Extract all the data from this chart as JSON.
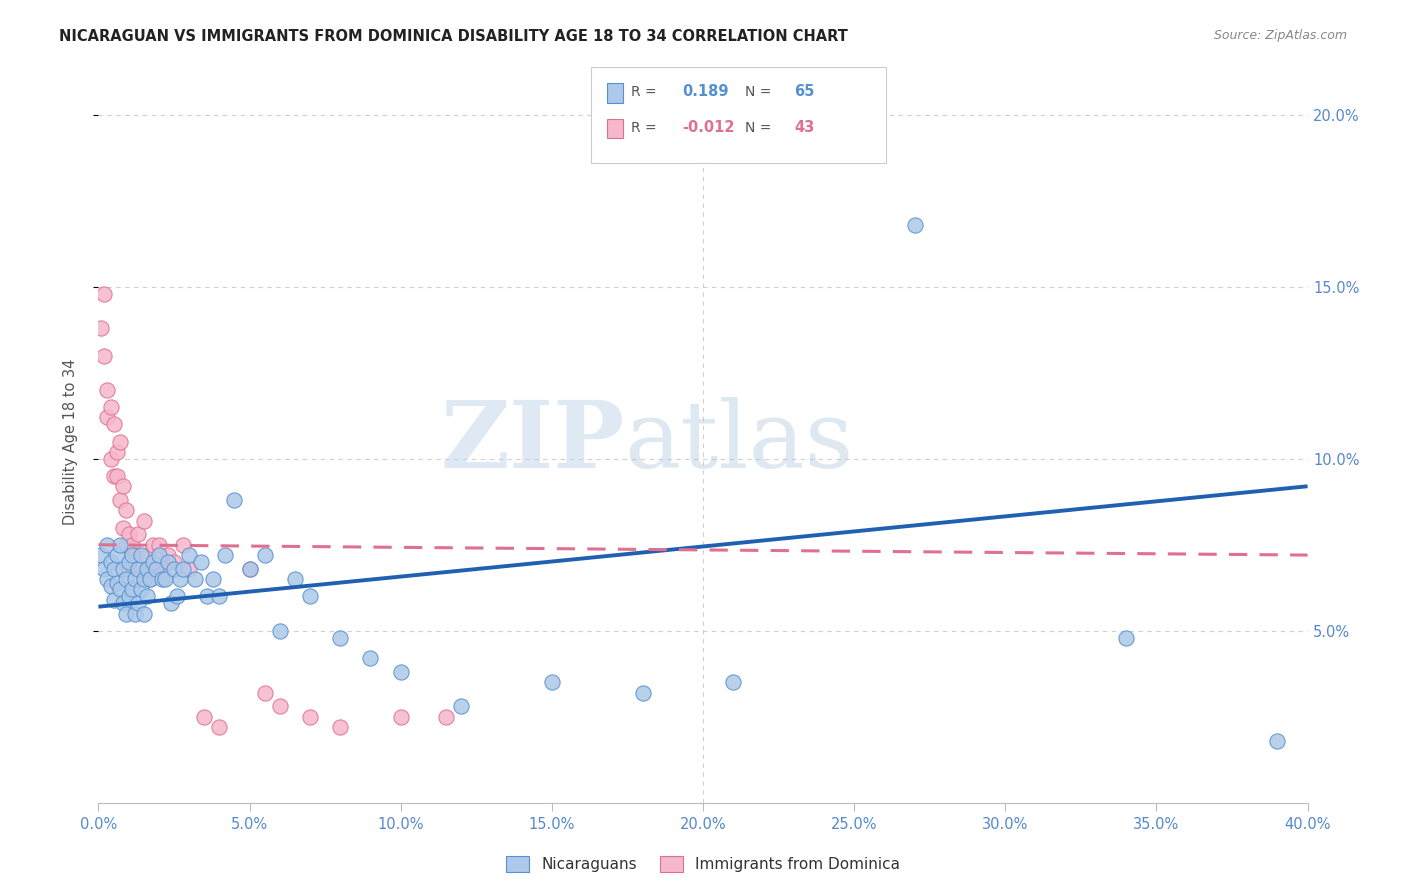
{
  "title": "NICARAGUAN VS IMMIGRANTS FROM DOMINICA DISABILITY AGE 18 TO 34 CORRELATION CHART",
  "source": "Source: ZipAtlas.com",
  "ylabel": "Disability Age 18 to 34",
  "legend_blue_r": "0.189",
  "legend_blue_n": "65",
  "legend_pink_r": "-0.012",
  "legend_pink_n": "43",
  "watermark_zip": "ZIP",
  "watermark_atlas": "atlas",
  "blue_dot_fill": "#adc8e8",
  "blue_dot_edge": "#5590d0",
  "pink_dot_fill": "#f5b8cc",
  "pink_dot_edge": "#e07090",
  "blue_line_color": "#2060b0",
  "pink_line_color": "#e07090",
  "grid_color": "#d0d0d0",
  "axis_label_color": "#5588cc",
  "title_color": "#222222",
  "source_color": "#888888",
  "xlim": [
    0.0,
    0.4
  ],
  "ylim": [
    0.0,
    0.21
  ],
  "x_ticks": [
    0.0,
    0.05,
    0.1,
    0.15,
    0.2,
    0.25,
    0.3,
    0.35,
    0.4
  ],
  "y_ticks": [
    0.05,
    0.1,
    0.15,
    0.2
  ],
  "blue_line_x0": 0.0,
  "blue_line_y0": 0.057,
  "blue_line_x1": 0.4,
  "blue_line_y1": 0.092,
  "pink_line_x0": 0.0,
  "pink_line_y0": 0.075,
  "pink_line_x1": 0.4,
  "pink_line_y1": 0.072,
  "blue_x": [
    0.001,
    0.002,
    0.003,
    0.003,
    0.004,
    0.004,
    0.005,
    0.005,
    0.006,
    0.006,
    0.007,
    0.007,
    0.008,
    0.008,
    0.009,
    0.009,
    0.01,
    0.01,
    0.011,
    0.011,
    0.012,
    0.012,
    0.013,
    0.013,
    0.014,
    0.014,
    0.015,
    0.015,
    0.016,
    0.016,
    0.017,
    0.018,
    0.019,
    0.02,
    0.021,
    0.022,
    0.023,
    0.024,
    0.025,
    0.026,
    0.027,
    0.028,
    0.03,
    0.032,
    0.034,
    0.036,
    0.038,
    0.04,
    0.042,
    0.045,
    0.05,
    0.055,
    0.06,
    0.065,
    0.07,
    0.08,
    0.09,
    0.1,
    0.12,
    0.15,
    0.18,
    0.21,
    0.27,
    0.34,
    0.39
  ],
  "blue_y": [
    0.072,
    0.068,
    0.075,
    0.065,
    0.07,
    0.063,
    0.068,
    0.059,
    0.072,
    0.064,
    0.075,
    0.062,
    0.068,
    0.058,
    0.065,
    0.055,
    0.07,
    0.06,
    0.072,
    0.062,
    0.065,
    0.055,
    0.068,
    0.058,
    0.072,
    0.062,
    0.065,
    0.055,
    0.068,
    0.06,
    0.065,
    0.07,
    0.068,
    0.072,
    0.065,
    0.065,
    0.07,
    0.058,
    0.068,
    0.06,
    0.065,
    0.068,
    0.072,
    0.065,
    0.07,
    0.06,
    0.065,
    0.06,
    0.072,
    0.088,
    0.068,
    0.072,
    0.05,
    0.065,
    0.06,
    0.048,
    0.042,
    0.038,
    0.028,
    0.035,
    0.032,
    0.035,
    0.168,
    0.048,
    0.018
  ],
  "pink_x": [
    0.001,
    0.002,
    0.002,
    0.003,
    0.003,
    0.004,
    0.004,
    0.005,
    0.005,
    0.006,
    0.006,
    0.007,
    0.007,
    0.008,
    0.008,
    0.009,
    0.009,
    0.01,
    0.01,
    0.011,
    0.012,
    0.013,
    0.014,
    0.015,
    0.016,
    0.017,
    0.018,
    0.019,
    0.02,
    0.021,
    0.023,
    0.025,
    0.028,
    0.03,
    0.035,
    0.04,
    0.05,
    0.055,
    0.06,
    0.07,
    0.08,
    0.1,
    0.115
  ],
  "pink_y": [
    0.138,
    0.13,
    0.148,
    0.12,
    0.112,
    0.115,
    0.1,
    0.095,
    0.11,
    0.102,
    0.095,
    0.088,
    0.105,
    0.092,
    0.08,
    0.085,
    0.075,
    0.078,
    0.068,
    0.075,
    0.072,
    0.078,
    0.068,
    0.082,
    0.072,
    0.065,
    0.075,
    0.068,
    0.075,
    0.068,
    0.072,
    0.07,
    0.075,
    0.068,
    0.025,
    0.022,
    0.068,
    0.032,
    0.028,
    0.025,
    0.022,
    0.025,
    0.025
  ]
}
